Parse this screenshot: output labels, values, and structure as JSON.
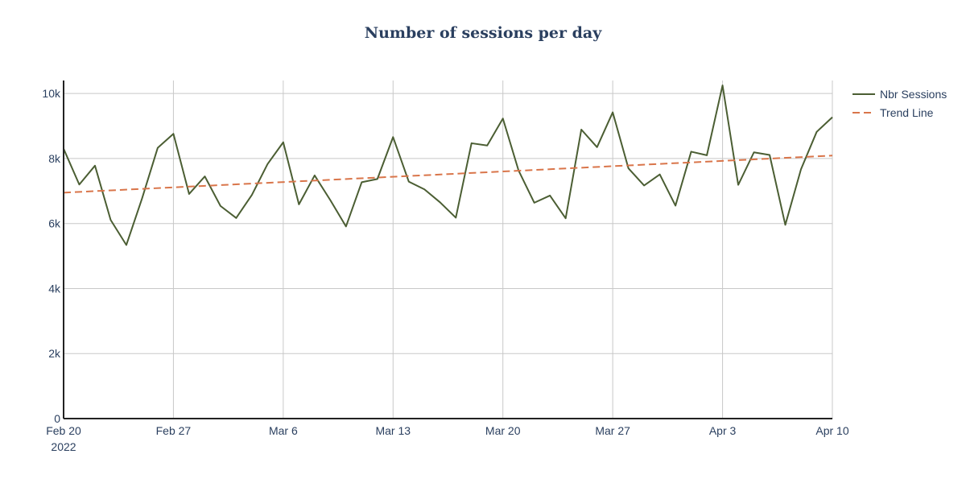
{
  "chart_data": {
    "type": "line",
    "title": "Number of sessions per day",
    "xlabel": "",
    "ylabel": "",
    "x_range": [
      "2022-02-20",
      "2022-04-10"
    ],
    "ylim": [
      0,
      10400
    ],
    "grid": true,
    "legend_placement": "top-right",
    "x_ticks": [
      {
        "date": "2022-02-20",
        "label": "Feb 20",
        "sublabel": "2022"
      },
      {
        "date": "2022-02-27",
        "label": "Feb 27"
      },
      {
        "date": "2022-03-06",
        "label": "Mar 6"
      },
      {
        "date": "2022-03-13",
        "label": "Mar 13"
      },
      {
        "date": "2022-03-20",
        "label": "Mar 20"
      },
      {
        "date": "2022-03-27",
        "label": "Mar 27"
      },
      {
        "date": "2022-04-03",
        "label": "Apr 3"
      },
      {
        "date": "2022-04-10",
        "label": "Apr 10"
      }
    ],
    "y_ticks": [
      {
        "value": 0,
        "label": "0"
      },
      {
        "value": 2000,
        "label": "2k"
      },
      {
        "value": 4000,
        "label": "4k"
      },
      {
        "value": 6000,
        "label": "6k"
      },
      {
        "value": 8000,
        "label": "8k"
      },
      {
        "value": 10000,
        "label": "10k"
      }
    ],
    "series": [
      {
        "name": "Nbr Sessions",
        "style": "solid",
        "color": "#4b5e33",
        "x": [
          "2022-02-20",
          "2022-02-21",
          "2022-02-22",
          "2022-02-23",
          "2022-02-24",
          "2022-02-25",
          "2022-02-26",
          "2022-02-27",
          "2022-02-28",
          "2022-03-01",
          "2022-03-02",
          "2022-03-03",
          "2022-03-04",
          "2022-03-05",
          "2022-03-06",
          "2022-03-07",
          "2022-03-08",
          "2022-03-09",
          "2022-03-10",
          "2022-03-11",
          "2022-03-12",
          "2022-03-13",
          "2022-03-14",
          "2022-03-15",
          "2022-03-16",
          "2022-03-17",
          "2022-03-18",
          "2022-03-19",
          "2022-03-20",
          "2022-03-21",
          "2022-03-22",
          "2022-03-23",
          "2022-03-24",
          "2022-03-25",
          "2022-03-26",
          "2022-03-27",
          "2022-03-28",
          "2022-03-29",
          "2022-03-30",
          "2022-03-31",
          "2022-04-01",
          "2022-04-02",
          "2022-04-03",
          "2022-04-04",
          "2022-04-05",
          "2022-04-06",
          "2022-04-07",
          "2022-04-08",
          "2022-04-09",
          "2022-04-10"
        ],
        "values": [
          8300,
          7200,
          7780,
          6110,
          5340,
          6770,
          8330,
          8760,
          6910,
          7450,
          6540,
          6170,
          6880,
          7830,
          8500,
          6590,
          7480,
          6720,
          5910,
          7270,
          7370,
          8660,
          7290,
          7050,
          6650,
          6180,
          8470,
          8400,
          9230,
          7630,
          6640,
          6860,
          6160,
          8890,
          8350,
          9420,
          7700,
          7170,
          7510,
          6550,
          8210,
          8100,
          10250,
          7190,
          8190,
          8110,
          5960,
          7670,
          8820,
          9270
        ]
      },
      {
        "name": "Trend Line",
        "style": "dashed",
        "color": "#d9754a",
        "x": [
          "2022-02-20",
          "2022-04-10"
        ],
        "values": [
          6950,
          8090
        ]
      }
    ]
  }
}
